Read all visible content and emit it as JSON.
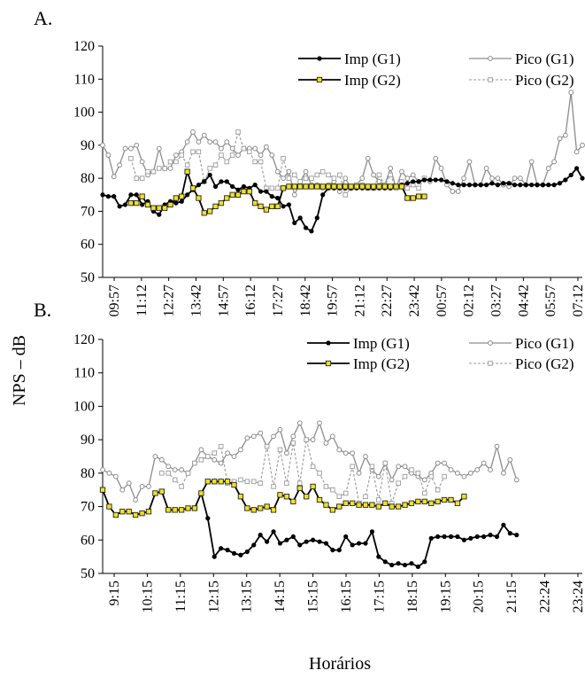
{
  "ylabel": "NPS – dB",
  "xlabel": "Horários",
  "colors": {
    "imp_g1": "#000000",
    "pico_g1": "#8c8c8c",
    "imp_g2_line": "#000000",
    "imp_g2_fill": "#f2e21c",
    "pico_g2": "#9a9a9a",
    "axis": "#000000"
  },
  "chart_data": [
    {
      "panel": "A.",
      "type": "line",
      "ylim": [
        50,
        120
      ],
      "yticks": [
        50,
        60,
        70,
        80,
        90,
        100,
        110,
        120
      ],
      "grid": false,
      "legend_position": "top-right",
      "tick_labels": [
        "09:57",
        "11:12",
        "12:27",
        "13:42",
        "14:57",
        "16:12",
        "17:27",
        "18:42",
        "19:57",
        "21:12",
        "22:27",
        "23:42",
        "00:57",
        "02:12",
        "03:27",
        "04:42",
        "05:57",
        "07:12"
      ],
      "n_points": 86,
      "series": [
        {
          "name": "Imp (G1)",
          "values": [
            75,
            74.5,
            74.5,
            71.5,
            72,
            75,
            75,
            72,
            73,
            70,
            69,
            72,
            73,
            72.5,
            73,
            75,
            76.5,
            78,
            79,
            81,
            77.5,
            79,
            79,
            77.5,
            76.5,
            77.5,
            77,
            78,
            76,
            76,
            74.5,
            74,
            71.5,
            72,
            66.5,
            68,
            65,
            64,
            68,
            75,
            77,
            77,
            77,
            77,
            77,
            77,
            77,
            77,
            77,
            77,
            77,
            77,
            77.5,
            78,
            78.5,
            79,
            79,
            79.5,
            79.5,
            79.5,
            79.5,
            79,
            78.5,
            78,
            78,
            78,
            78,
            78,
            78,
            78.5,
            78,
            78.5,
            78.5,
            78,
            78,
            78,
            78,
            78,
            78,
            78,
            78,
            78.5,
            79.5,
            81,
            83,
            80
          ]
        },
        {
          "name": "Pico (G1)",
          "values": [
            90,
            87,
            80.5,
            84,
            89,
            89,
            90,
            85,
            81,
            82,
            89,
            83,
            83,
            87,
            88,
            91,
            94,
            91,
            93,
            91,
            91,
            89,
            91,
            89,
            87,
            89,
            89,
            89,
            87,
            89.5,
            87,
            82,
            80,
            82,
            75,
            79,
            82,
            78,
            78,
            77,
            78,
            79,
            76,
            80,
            77,
            78,
            80,
            86,
            81,
            79,
            78,
            83,
            77,
            82,
            80,
            81,
            79,
            80,
            79,
            86,
            83,
            78,
            76,
            76,
            80,
            85,
            78,
            78,
            83,
            80,
            80,
            78,
            77.5,
            80,
            80,
            78,
            85,
            78,
            78,
            83,
            85,
            92,
            93,
            106,
            88,
            90
          ]
        },
        {
          "name": "Imp (G2)",
          "values": [
            null,
            null,
            null,
            null,
            null,
            72.5,
            72.5,
            74.5,
            72,
            71,
            71,
            71,
            72,
            74,
            74.5,
            82,
            77,
            74,
            69.5,
            70,
            71.5,
            72.5,
            74,
            75,
            75,
            76,
            76,
            72.5,
            71.5,
            70.5,
            71.5,
            71.5,
            77,
            77.5,
            77.5,
            77.5,
            77.5,
            77.5,
            77.5,
            77.5,
            77.5,
            77.5,
            77.5,
            77.5,
            77.5,
            77.5,
            77.5,
            77.5,
            77.5,
            77.5,
            77.5,
            77.5,
            77.5,
            77.5,
            74,
            74,
            74.5,
            74.5,
            null,
            null,
            null,
            null,
            null,
            null,
            null,
            null,
            null,
            null,
            null,
            null,
            null,
            null,
            null,
            null,
            null,
            null,
            null,
            null,
            null,
            null,
            null,
            null,
            null,
            null,
            null,
            null
          ]
        },
        {
          "name": "Pico (G2)",
          "values": [
            null,
            null,
            null,
            null,
            null,
            86,
            80,
            80,
            82,
            82,
            83,
            83,
            85,
            85,
            87,
            84,
            88,
            88,
            79,
            83,
            84,
            87,
            85,
            87,
            94,
            89,
            88,
            85,
            85,
            77,
            77,
            77,
            86,
            80,
            81,
            79,
            80,
            80,
            81,
            82,
            81,
            80,
            81,
            75,
            77,
            78,
            78,
            77,
            77,
            81,
            78,
            81,
            77,
            79,
            77,
            78,
            77,
            80,
            null,
            null,
            null,
            null,
            null,
            null,
            null,
            null,
            null,
            null,
            null,
            null,
            null,
            null,
            null,
            null,
            null,
            null,
            null,
            null,
            null,
            null,
            null,
            null,
            null,
            null,
            null,
            null
          ]
        }
      ]
    },
    {
      "panel": "B.",
      "type": "line",
      "ylim": [
        50,
        120
      ],
      "yticks": [
        50,
        60,
        70,
        80,
        90,
        100,
        110,
        120
      ],
      "grid": false,
      "legend_position": "top-right",
      "tick_labels": [
        "9:15",
        "10:15",
        "11:15",
        "12:15",
        "13:15",
        "14:15",
        "15:15",
        "16:15",
        "17:15",
        "18:15",
        "19:15",
        "20:15",
        "21:15",
        "22:24",
        "23:24"
      ],
      "n_points": 74,
      "series": [
        {
          "name": "Imp (G1)",
          "values": [
            null,
            null,
            null,
            null,
            null,
            null,
            null,
            null,
            null,
            null,
            null,
            null,
            null,
            null,
            null,
            74,
            66.5,
            55,
            57.5,
            57,
            56,
            55.5,
            56.5,
            58.5,
            61.5,
            59.5,
            62.5,
            59,
            60,
            61,
            58.5,
            59.5,
            60,
            59.5,
            59,
            57,
            57,
            61,
            58.5,
            59,
            59,
            62.5,
            55,
            53.5,
            52.5,
            53,
            52.5,
            53,
            52,
            53.5,
            60.5,
            61,
            61,
            61,
            61,
            60,
            60.5,
            61,
            61,
            61.5,
            61,
            64.5,
            62,
            61.5,
            null,
            null,
            null,
            null,
            null,
            null,
            null,
            null,
            null,
            null
          ]
        },
        {
          "name": "Pico (G1)",
          "values": [
            81,
            80,
            79,
            75,
            77,
            72,
            76,
            76,
            85,
            84,
            82,
            81,
            81,
            80,
            83,
            87,
            85,
            84,
            83,
            86,
            85,
            87,
            90.5,
            91,
            92,
            88,
            91,
            93,
            86,
            91,
            95,
            90,
            90,
            95,
            89,
            91,
            87,
            86,
            86,
            80,
            85,
            81,
            79,
            83,
            78,
            82,
            82,
            80,
            79,
            78,
            80,
            83,
            83,
            81,
            80,
            79,
            80,
            81,
            83,
            81,
            88,
            80,
            84,
            78
          ]
        },
        {
          "name": "Imp (G2)",
          "values": [
            75,
            70,
            67.5,
            68.5,
            68.5,
            67.5,
            68,
            68.5,
            74,
            74.5,
            69,
            69,
            69,
            69.5,
            69.5,
            74,
            77.5,
            77.5,
            77.5,
            77.5,
            76.5,
            73,
            69.5,
            69,
            69.5,
            70,
            69,
            73.5,
            73,
            71.5,
            75.5,
            73,
            76,
            72,
            70.5,
            69,
            70,
            71,
            71,
            70.5,
            70.5,
            70.5,
            70,
            71,
            70,
            70,
            70.5,
            71,
            71.5,
            71.5,
            71,
            71.5,
            72,
            72,
            71,
            73
          ]
        },
        {
          "name": "Pico (G2)",
          "values": [
            null,
            null,
            null,
            null,
            null,
            null,
            null,
            null,
            null,
            80,
            80,
            78,
            76,
            80,
            83,
            84,
            85,
            86,
            88,
            77,
            77.5,
            78,
            77.5,
            77.5,
            77,
            88,
            76,
            87,
            77,
            89,
            77,
            90,
            82,
            80,
            76,
            75,
            73,
            74,
            82,
            71,
            73,
            82,
            72,
            83,
            71,
            77,
            79,
            81,
            80,
            74,
            79,
            75,
            79
          ]
        }
      ]
    }
  ]
}
